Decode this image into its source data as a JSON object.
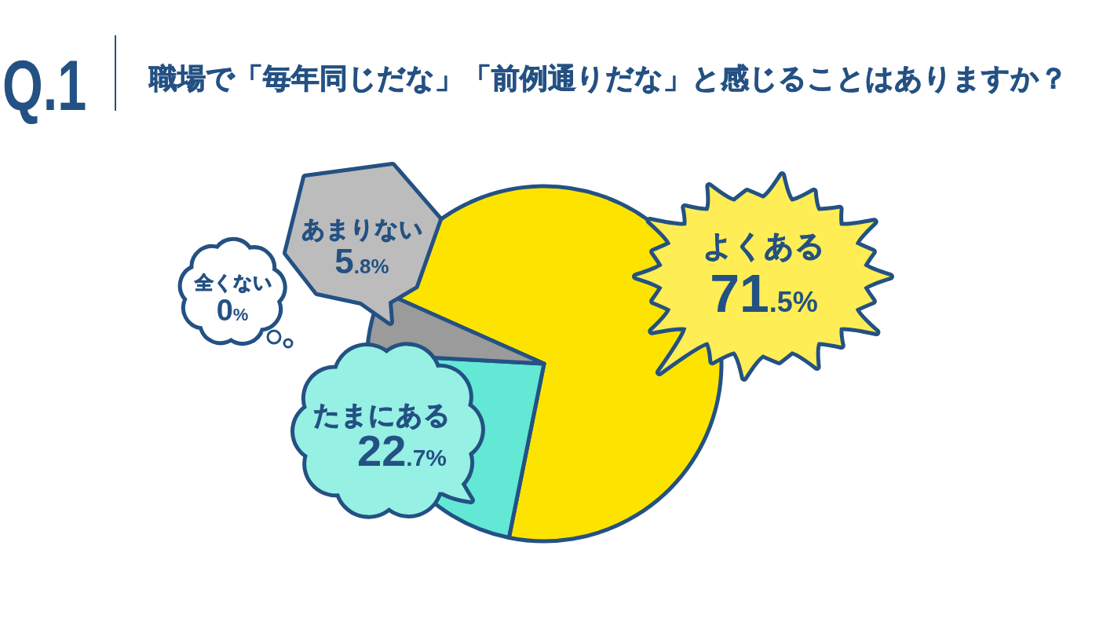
{
  "chart_data": {
    "type": "pie",
    "title": "Q.1",
    "subtitle": "職場で「毎年同じだな」「前例通りだな」と感じることはありますか？",
    "categories": [
      "よくある",
      "たまにある",
      "あまりない",
      "全くない"
    ],
    "values": [
      71.5,
      22.7,
      5.8,
      0
    ],
    "colors": [
      "#fde400",
      "#62e8d5",
      "#9b9b9b",
      "#ffffff"
    ],
    "value_labels": [
      "71.5%",
      "22.7%",
      "5.8%",
      "0%"
    ]
  }
}
